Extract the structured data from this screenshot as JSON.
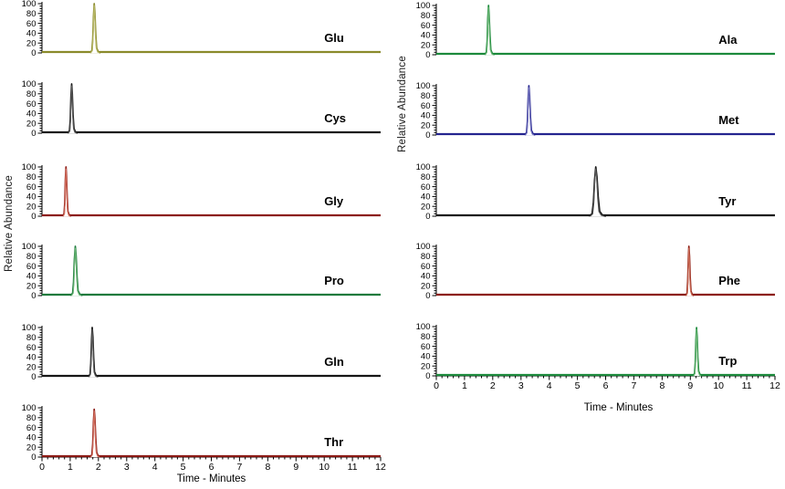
{
  "figure": {
    "y_axis_label": "Relative Abundance",
    "x_axis_label": "Time - Minutes"
  },
  "chart_data": {
    "type": "line",
    "description": "Extracted ion chromatograms of 11 amino acids, two columns of stacked panels, each a flat baseline at 0 with a single peak normalized to 100% relative abundance",
    "xlabel": "Time - Minutes",
    "ylabel": "Relative Abundance",
    "x_range": [
      0,
      12
    ],
    "y_range": [
      0,
      100
    ],
    "x_ticks": [
      0,
      1,
      2,
      3,
      4,
      5,
      6,
      7,
      8,
      9,
      10,
      11,
      12
    ],
    "x_minor_tick_step": 0.2,
    "y_ticks": [
      0,
      20,
      40,
      60,
      80,
      100
    ],
    "y_minor_tick_step": 5,
    "grid": false,
    "legend": "none (peak identity labeled inside each panel)",
    "panels": [
      {
        "label": "Glu",
        "column": "left",
        "row": 0,
        "color": "#8a8a2b",
        "color2": "#b8b868",
        "peak": {
          "time": 1.85,
          "height": 100,
          "width": 0.3
        }
      },
      {
        "label": "Cys",
        "column": "left",
        "row": 1,
        "color": "#1a1a1a",
        "color2": "#5a5a5a",
        "peak": {
          "time": 1.05,
          "height": 100,
          "width": 0.28
        }
      },
      {
        "label": "Gly",
        "column": "left",
        "row": 2,
        "color": "#8c1a15",
        "color2": "#d4705e",
        "peak": {
          "time": 0.85,
          "height": 100,
          "width": 0.24
        }
      },
      {
        "label": "Pro",
        "column": "left",
        "row": 3,
        "color": "#1c7a3c",
        "color2": "#6ab574",
        "peak": {
          "time": 1.18,
          "height": 100,
          "width": 0.34
        }
      },
      {
        "label": "Gln",
        "column": "left",
        "row": 4,
        "color": "#161616",
        "color2": "#5a5a5a",
        "peak": {
          "time": 1.78,
          "height": 100,
          "width": 0.28
        }
      },
      {
        "label": "Thr",
        "column": "left",
        "row": 5,
        "color": "#8c1a15",
        "color2": "#d4705e",
        "peak": {
          "time": 1.85,
          "height": 97,
          "width": 0.3
        }
      },
      {
        "label": "Ala",
        "column": "right",
        "row": 0,
        "color": "#1c8a3c",
        "color2": "#6ab574",
        "peak": {
          "time": 1.85,
          "height": 100,
          "width": 0.28
        }
      },
      {
        "label": "Met",
        "column": "right",
        "row": 1,
        "color": "#24248f",
        "color2": "#7878c0",
        "peak": {
          "time": 3.28,
          "height": 100,
          "width": 0.3
        }
      },
      {
        "label": "Tyr",
        "column": "right",
        "row": 2,
        "color": "#161616",
        "color2": "#5a5a5a",
        "peak": {
          "time": 5.65,
          "height": 100,
          "width": 0.48
        }
      },
      {
        "label": "Phe",
        "column": "right",
        "row": 3,
        "color": "#8c1a10",
        "color2": "#cc6e58",
        "peak": {
          "time": 8.95,
          "height": 100,
          "width": 0.24
        }
      },
      {
        "label": "Trp",
        "column": "right",
        "row": 4,
        "color": "#1c8a3c",
        "color2": "#6ab574",
        "peak": {
          "time": 9.22,
          "height": 98,
          "width": 0.26
        }
      }
    ]
  }
}
